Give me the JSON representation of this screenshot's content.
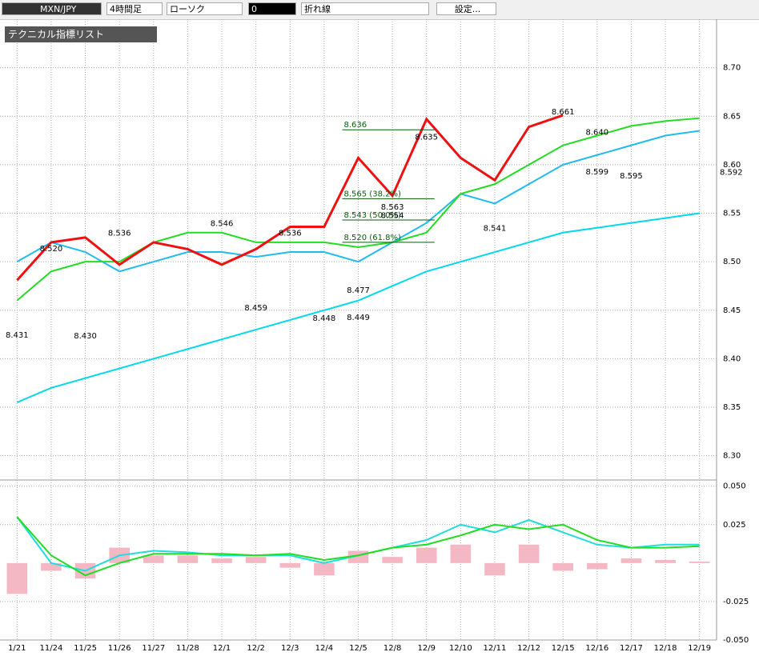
{
  "toolbar": {
    "symbol": "MXN/JPY",
    "timeframe": "4時間足",
    "chart_style": "ローソク",
    "count": "0",
    "line_style": "折れ線",
    "settings": "設定..."
  },
  "indicator_list": "テクニカル指標リスト",
  "chart_data": [
    {
      "type": "line",
      "categories": [
        "1/21",
        "11/24",
        "11/25",
        "11/26",
        "11/27",
        "11/28",
        "12/1",
        "12/2",
        "12/3",
        "12/4",
        "12/5",
        "12/8",
        "12/9",
        "12/10",
        "12/11",
        "12/12",
        "12/15",
        "12/16",
        "12/17",
        "12/18",
        "12/19"
      ],
      "series": [
        {
          "color": "#00d8ee",
          "values": [
            8.355,
            8.37,
            8.38,
            8.39,
            8.4,
            8.41,
            8.42,
            8.43,
            8.44,
            8.45,
            8.46,
            8.475,
            8.49,
            8.5,
            8.51,
            8.52,
            8.53,
            8.535,
            8.54,
            8.545,
            8.55
          ]
        },
        {
          "color": "#22bbee",
          "values": [
            8.5,
            8.52,
            8.51,
            8.49,
            8.5,
            8.51,
            8.51,
            8.505,
            8.51,
            8.51,
            8.5,
            8.52,
            8.54,
            8.57,
            8.56,
            8.58,
            8.6,
            8.61,
            8.62,
            8.63,
            8.635
          ]
        },
        {
          "color": "#22dd22",
          "values": [
            8.46,
            8.49,
            8.5,
            8.5,
            8.52,
            8.53,
            8.53,
            8.52,
            8.52,
            8.52,
            8.515,
            8.52,
            8.53,
            8.57,
            8.58,
            8.6,
            8.62,
            8.63,
            8.64,
            8.645,
            8.648
          ]
        },
        {
          "color": "#ee1111",
          "values": [
            8.481,
            8.52,
            8.525,
            8.497,
            8.52,
            8.513,
            8.497,
            8.513,
            8.536,
            8.536,
            8.607,
            8.568,
            8.647,
            8.607,
            8.584,
            8.639,
            8.651,
            null,
            null,
            null,
            null
          ]
        }
      ],
      "ylim": [
        8.275,
        8.75
      ],
      "yticks": [
        {
          "value": 8.3,
          "label": "8.30"
        },
        {
          "value": 8.35,
          "label": "8.35"
        },
        {
          "value": 8.4,
          "label": "8.40"
        },
        {
          "value": 8.45,
          "label": "8.45"
        },
        {
          "value": 8.5,
          "label": "8.50"
        },
        {
          "value": 8.55,
          "label": "8.55"
        },
        {
          "value": 8.6,
          "label": "8.60"
        },
        {
          "value": 8.65,
          "label": "8.65"
        },
        {
          "value": 8.7,
          "label": "8.70"
        }
      ],
      "last_price": {
        "value": 8.592,
        "label": "8.592"
      },
      "grid": true,
      "annotations": [
        {
          "x": "1/21",
          "value": 8.431,
          "label": "8.431"
        },
        {
          "x": "11/24",
          "value": 8.52,
          "label": "8.520"
        },
        {
          "x": "11/25",
          "value": 8.43,
          "label": "8.430"
        },
        {
          "x": "11/26",
          "value": 8.536,
          "label": "8.536"
        },
        {
          "x": "12/1",
          "value": 8.546,
          "label": "8.546"
        },
        {
          "x": "12/2",
          "value": 8.459,
          "label": "8.459"
        },
        {
          "x": "12/3",
          "value": 8.536,
          "label": "8.536"
        },
        {
          "x": "12/4",
          "value": 8.448,
          "label": "8.448"
        },
        {
          "x": "12/5",
          "value": 8.449,
          "label": "8.449"
        },
        {
          "x": "12/5",
          "value": 8.477,
          "label": "8.477"
        },
        {
          "x": "12/8",
          "value": 8.554,
          "label": "8.554"
        },
        {
          "x": "12/8",
          "value": 8.563,
          "label": "8.563"
        },
        {
          "x": "12/9",
          "value": 8.635,
          "label": "8.635"
        },
        {
          "x": "12/11",
          "value": 8.541,
          "label": "8.541"
        },
        {
          "x": "12/15",
          "value": 8.661,
          "label": "8.661"
        },
        {
          "x": "12/16",
          "value": 8.64,
          "label": "8.640"
        },
        {
          "x": "12/16",
          "value": 8.599,
          "label": "8.599"
        },
        {
          "x": "12/17",
          "value": 8.595,
          "label": "8.595"
        }
      ],
      "fib_levels": [
        {
          "value": 8.636,
          "label": "8.636"
        },
        {
          "value": 8.565,
          "label": "8.565 (38.2%)"
        },
        {
          "value": 8.543,
          "label": "8.543 (50.0%)"
        },
        {
          "value": 8.52,
          "label": "8.520 (61.8%)"
        }
      ]
    },
    {
      "type": "macd",
      "series": [
        {
          "kind": "bar",
          "color": "#f4b8c4",
          "values": [
            -0.02,
            -0.005,
            -0.01,
            0.01,
            0.005,
            0.005,
            0.003,
            0.004,
            -0.003,
            -0.008,
            0.008,
            0.004,
            0.01,
            0.012,
            -0.008,
            0.012,
            -0.005,
            -0.004,
            0.003,
            0.002,
            0.001
          ]
        },
        {
          "kind": "line",
          "color": "#22dddd",
          "values": [
            0.03,
            0,
            -0.005,
            0.005,
            0.008,
            0.007,
            0.005,
            0.005,
            0.005,
            0.0,
            0.005,
            0.01,
            0.015,
            0.025,
            0.02,
            0.028,
            0.02,
            0.012,
            0.01,
            0.012,
            0.012
          ]
        },
        {
          "kind": "line",
          "color": "#22dd22",
          "values": [
            0.03,
            0.005,
            -0.008,
            0.0,
            0.006,
            0.006,
            0.006,
            0.005,
            0.006,
            0.002,
            0.005,
            0.01,
            0.012,
            0.018,
            0.025,
            0.022,
            0.025,
            0.015,
            0.01,
            0.01,
            0.011
          ]
        }
      ],
      "ylim": [
        -0.05,
        0.054
      ],
      "yticks": [
        {
          "value": -0.05,
          "label": "-0.050"
        },
        {
          "value": -0.025,
          "label": "-0.025"
        },
        {
          "value": 0.025,
          "label": "0.025"
        },
        {
          "value": 0.05,
          "label": "0.050"
        }
      ],
      "grid": true
    }
  ]
}
